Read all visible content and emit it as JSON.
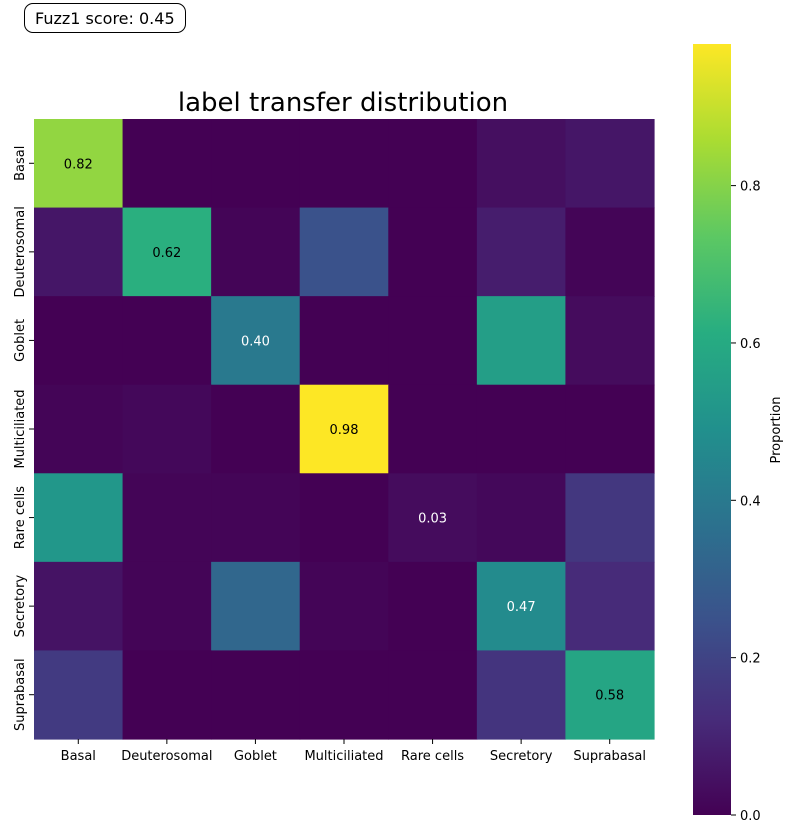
{
  "score_badge": "Fuzz1 score: 0.45",
  "chart_data": {
    "type": "heatmap",
    "title": "label transfer distribution",
    "x_categories": [
      "Basal",
      "Deuterosomal",
      "Goblet",
      "Multiciliated",
      "Rare cells",
      "Secretory",
      "Suprabasal"
    ],
    "y_categories": [
      "Basal",
      "Deuterosomal",
      "Goblet",
      "Multiciliated",
      "Rare cells",
      "Secretory",
      "Suprabasal"
    ],
    "values": [
      [
        0.82,
        0.0,
        0.0,
        0.0,
        0.0,
        0.04,
        0.06
      ],
      [
        0.06,
        0.62,
        0.01,
        0.25,
        0.0,
        0.08,
        0.01
      ],
      [
        0.0,
        0.0,
        0.4,
        0.0,
        0.0,
        0.55,
        0.03
      ],
      [
        0.01,
        0.02,
        0.0,
        0.98,
        0.0,
        0.0,
        0.0
      ],
      [
        0.52,
        0.01,
        0.01,
        0.0,
        0.03,
        0.02,
        0.16
      ],
      [
        0.05,
        0.01,
        0.33,
        0.01,
        0.0,
        0.47,
        0.12
      ],
      [
        0.17,
        0.0,
        0.0,
        0.0,
        0.0,
        0.15,
        0.58
      ]
    ],
    "annotations": [
      "0.82",
      "0.62",
      "0.40",
      "0.98",
      "0.03",
      "0.47",
      "0.58"
    ],
    "colorbar": {
      "label": "Proportion",
      "colormap": "viridis",
      "range": [
        0,
        0.98
      ],
      "ticks": [
        "0.0",
        "0.2",
        "0.4",
        "0.6",
        "0.8"
      ]
    }
  }
}
